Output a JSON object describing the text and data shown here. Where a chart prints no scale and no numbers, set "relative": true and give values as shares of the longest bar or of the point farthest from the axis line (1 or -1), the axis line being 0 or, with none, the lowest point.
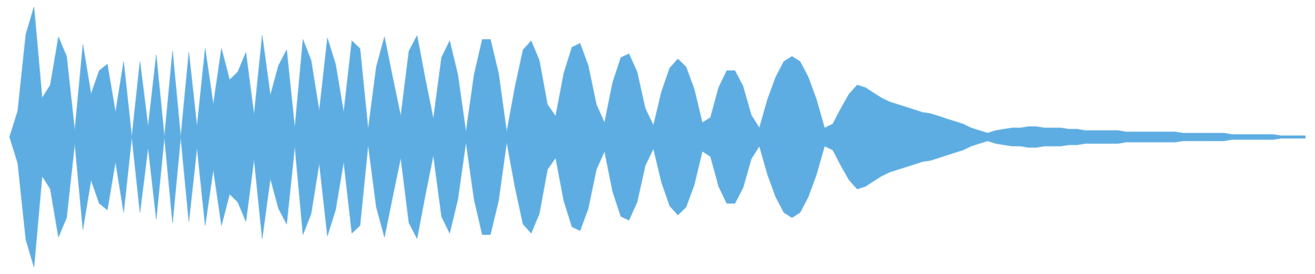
{
  "chart_data": {
    "type": "area",
    "relative": true,
    "categories": [
      null,
      null,
      null,
      null,
      null,
      null,
      null,
      null,
      null,
      null,
      null,
      null,
      null,
      null,
      null,
      null,
      null,
      null,
      null,
      null,
      null,
      null,
      null,
      null,
      null,
      null,
      null,
      null,
      null,
      null,
      null,
      null,
      null,
      null,
      null,
      null,
      null,
      null,
      null,
      null,
      null,
      null,
      null,
      null,
      null,
      null,
      null,
      null,
      null,
      null,
      null,
      null,
      null,
      null,
      null,
      null,
      null,
      null,
      null,
      null,
      null,
      null,
      null,
      null,
      null,
      null,
      null,
      null,
      null,
      null,
      null,
      null,
      null,
      null,
      null,
      null,
      null,
      null,
      null,
      null,
      null,
      null,
      null,
      null,
      null,
      null,
      null,
      null,
      null,
      null,
      null,
      null,
      null,
      null,
      null,
      null,
      null,
      null,
      null,
      null,
      null,
      null,
      null,
      null,
      null,
      null,
      null,
      null,
      null,
      null,
      null,
      null,
      null,
      null,
      null,
      null,
      null,
      null,
      null,
      null,
      null,
      null,
      null,
      null,
      null,
      null,
      null,
      null,
      null,
      null,
      null,
      null,
      null,
      null,
      null,
      null,
      null,
      null,
      null,
      null,
      null,
      null,
      null,
      null,
      null,
      null,
      null,
      null,
      null,
      null,
      null,
      null,
      null,
      null,
      null,
      null,
      null,
      null,
      null,
      null
    ],
    "series": [
      {
        "color": "#5dade2",
        "values": [
          0,
          0.2,
          0.79,
          1,
          0.3,
          0.4,
          0.77,
          0.62,
          0.05,
          0.71,
          0.33,
          0.51,
          0.56,
          0.19,
          0.58,
          0,
          0.58,
          0.08,
          0.63,
          0,
          0.66,
          0,
          0.65,
          0.08,
          0.68,
          0.25,
          0.68,
          0.44,
          0.5,
          0.65,
          0.17,
          0.78,
          0.32,
          0.55,
          0.67,
          0.07,
          0.75,
          0.59,
          0.2,
          0.76,
          0.56,
          0.19,
          0.74,
          0.68,
          0.06,
          0.54,
          0.77,
          0.46,
          0.16,
          0.66,
          0.78,
          0.45,
          0.14,
          0.61,
          0.74,
          0.48,
          0.04,
          0.48,
          0.75,
          0.75,
          0.49,
          0.04,
          0.38,
          0.67,
          0.74,
          0.59,
          0.25,
          0.16,
          0.49,
          0.69,
          0.72,
          0.55,
          0.25,
          0.11,
          0.42,
          0.61,
          0.64,
          0.5,
          0.22,
          0.09,
          0.35,
          0.53,
          0.6,
          0.54,
          0.37,
          0.11,
          0.15,
          0.38,
          0.51,
          0.51,
          0.39,
          0.17,
          0.07,
          0.29,
          0.46,
          0.58,
          0.62,
          0.58,
          0.46,
          0.29,
          0.07,
          0.1,
          0.22,
          0.33,
          0.4,
          0.38,
          0.34,
          0.3,
          0.27,
          0.25,
          0.23,
          0.21,
          0.19,
          0.18,
          0.16,
          0.14,
          0.12,
          0.1,
          0.07,
          0.05,
          0.03,
          0.05,
          0.06,
          0.07,
          0.07,
          0.08,
          0.08,
          0.07,
          0.07,
          0.07,
          0.06,
          0.06,
          0.05,
          0.05,
          0.05,
          0.05,
          0.05,
          0.04,
          0.04,
          0.04,
          0.04,
          0.04,
          0.04,
          0.04,
          0.03,
          0.03,
          0.03,
          0.03,
          0.03,
          0.03,
          0.02,
          0.02,
          0.02,
          0.02,
          0.02,
          0.02,
          0.01,
          0.01,
          0.01,
          0.01
        ]
      },
      {
        "color": "#5dade2",
        "values": [
          0,
          -0.2,
          -0.79,
          -1,
          -0.3,
          -0.4,
          -0.77,
          -0.62,
          -0.05,
          -0.71,
          -0.33,
          -0.51,
          -0.56,
          -0.19,
          -0.58,
          0,
          -0.58,
          -0.08,
          -0.63,
          0,
          -0.66,
          0,
          -0.65,
          -0.08,
          -0.68,
          -0.25,
          -0.68,
          -0.44,
          -0.5,
          -0.65,
          -0.17,
          -0.78,
          -0.32,
          -0.55,
          -0.67,
          -0.07,
          -0.75,
          -0.59,
          -0.2,
          -0.76,
          -0.56,
          -0.19,
          -0.74,
          -0.68,
          -0.06,
          -0.54,
          -0.77,
          -0.46,
          -0.16,
          -0.66,
          -0.78,
          -0.45,
          -0.14,
          -0.61,
          -0.74,
          -0.48,
          -0.04,
          -0.48,
          -0.75,
          -0.75,
          -0.49,
          -0.04,
          -0.38,
          -0.67,
          -0.74,
          -0.59,
          -0.25,
          -0.16,
          -0.49,
          -0.69,
          -0.72,
          -0.55,
          -0.25,
          -0.11,
          -0.42,
          -0.61,
          -0.64,
          -0.5,
          -0.22,
          -0.09,
          -0.35,
          -0.53,
          -0.6,
          -0.54,
          -0.37,
          -0.11,
          -0.15,
          -0.38,
          -0.51,
          -0.51,
          -0.39,
          -0.17,
          -0.07,
          -0.29,
          -0.46,
          -0.58,
          -0.62,
          -0.58,
          -0.46,
          -0.29,
          -0.07,
          -0.1,
          -0.22,
          -0.33,
          -0.4,
          -0.38,
          -0.34,
          -0.3,
          -0.27,
          -0.25,
          -0.23,
          -0.21,
          -0.19,
          -0.18,
          -0.16,
          -0.14,
          -0.12,
          -0.1,
          -0.07,
          -0.05,
          -0.03,
          -0.05,
          -0.06,
          -0.07,
          -0.07,
          -0.08,
          -0.08,
          -0.07,
          -0.07,
          -0.07,
          -0.06,
          -0.06,
          -0.05,
          -0.05,
          -0.05,
          -0.05,
          -0.05,
          -0.04,
          -0.04,
          -0.04,
          -0.04,
          -0.04,
          -0.04,
          -0.04,
          -0.03,
          -0.03,
          -0.03,
          -0.03,
          -0.03,
          -0.03,
          -0.02,
          -0.02,
          -0.02,
          -0.02,
          -0.02,
          -0.02,
          -0.01,
          -0.01,
          -0.01,
          -0.01
        ]
      }
    ]
  }
}
